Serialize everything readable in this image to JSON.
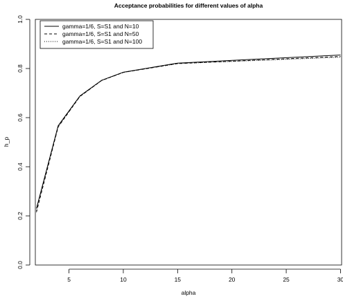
{
  "chart_data": {
    "type": "line",
    "title": "Acceptance probabilities for different values of alpha",
    "xlabel": "alpha",
    "ylabel": "h_p",
    "xlim": [
      1.9,
      30.1
    ],
    "ylim": [
      0.0,
      1.0
    ],
    "xticks": [
      5,
      10,
      15,
      20,
      25,
      30
    ],
    "yticks": [
      0.0,
      0.2,
      0.4,
      0.6,
      0.8,
      1.0
    ],
    "xtick_labels": [
      "5",
      "10",
      "15",
      "20",
      "25",
      "30"
    ],
    "ytick_labels": [
      "0.0",
      "0.2",
      "0.4",
      "0.6",
      "0.8",
      "1.0"
    ],
    "x": [
      2,
      4,
      6,
      8,
      10,
      15,
      30
    ],
    "series": [
      {
        "name": "gamma=1/6, S=S1 and N=10",
        "line_style": "solid",
        "values": [
          0.23,
          0.567,
          0.688,
          0.752,
          0.785,
          0.822,
          0.855
        ]
      },
      {
        "name": "gamma=1/6, S=S1 and N=50",
        "line_style": "dashed",
        "values": [
          0.215,
          0.562,
          0.686,
          0.751,
          0.784,
          0.82,
          0.849
        ]
      },
      {
        "name": "gamma=1/6, S=S1 and N=100",
        "line_style": "dotted",
        "values": [
          0.222,
          0.563,
          0.686,
          0.751,
          0.784,
          0.82,
          0.846
        ]
      }
    ],
    "grid": false,
    "legend_position": "top-left",
    "colors": {
      "line": "#000000",
      "frame": "#000000",
      "background": "#ffffff"
    }
  }
}
